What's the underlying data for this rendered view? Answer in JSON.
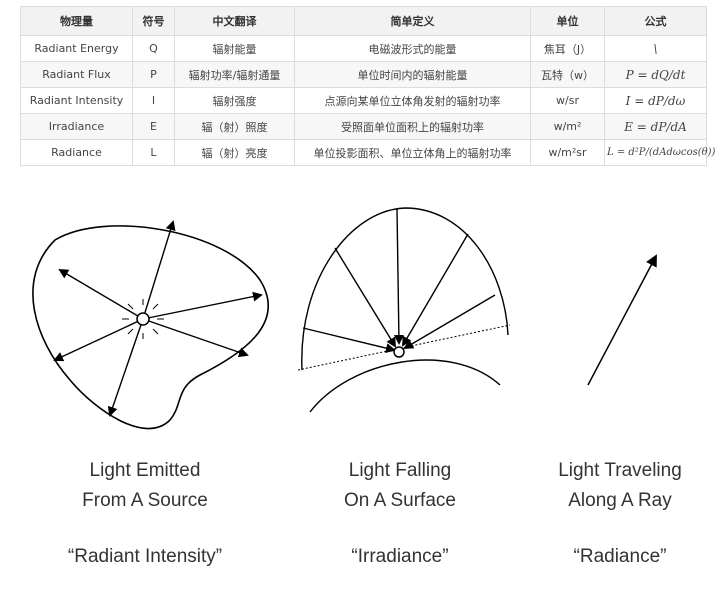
{
  "table": {
    "headers": [
      "物理量",
      "符号",
      "中文翻译",
      "简单定义",
      "单位",
      "公式"
    ],
    "rows": [
      [
        "Radiant Energy",
        "Q",
        "辐射能量",
        "电磁波形式的能量",
        "焦耳（J）",
        "\\"
      ],
      [
        "Radiant Flux",
        "P",
        "辐射功率/辐射通量",
        "单位时间内的辐射能量",
        "瓦特（w）",
        "P = dQ/dt"
      ],
      [
        "Radiant Intensity",
        "I",
        "辐射强度",
        "点源向某单位立体角发射的辐射功率",
        "w/sr",
        "I = dP/dω"
      ],
      [
        "Irradiance",
        "E",
        "辐（射）照度",
        "受照面单位面积上的辐射功率",
        "w/m²",
        "E = dP/dA"
      ],
      [
        "Radiance",
        "L",
        "辐（射）亮度",
        "单位投影面积、单位立体角上的辐射功率",
        "w/m²sr",
        "L = d²P/(dAdωcos(θ))"
      ]
    ]
  },
  "figures": [
    {
      "caption_line1": "Light Emitted",
      "caption_line2": "From A Source",
      "quote": "“Radiant Intensity”"
    },
    {
      "caption_line1": "Light Falling",
      "caption_line2": "On A Surface",
      "quote": "“Irradiance”"
    },
    {
      "caption_line1": "Light Traveling",
      "caption_line2": "Along A Ray",
      "quote": "“Radiance”"
    }
  ]
}
